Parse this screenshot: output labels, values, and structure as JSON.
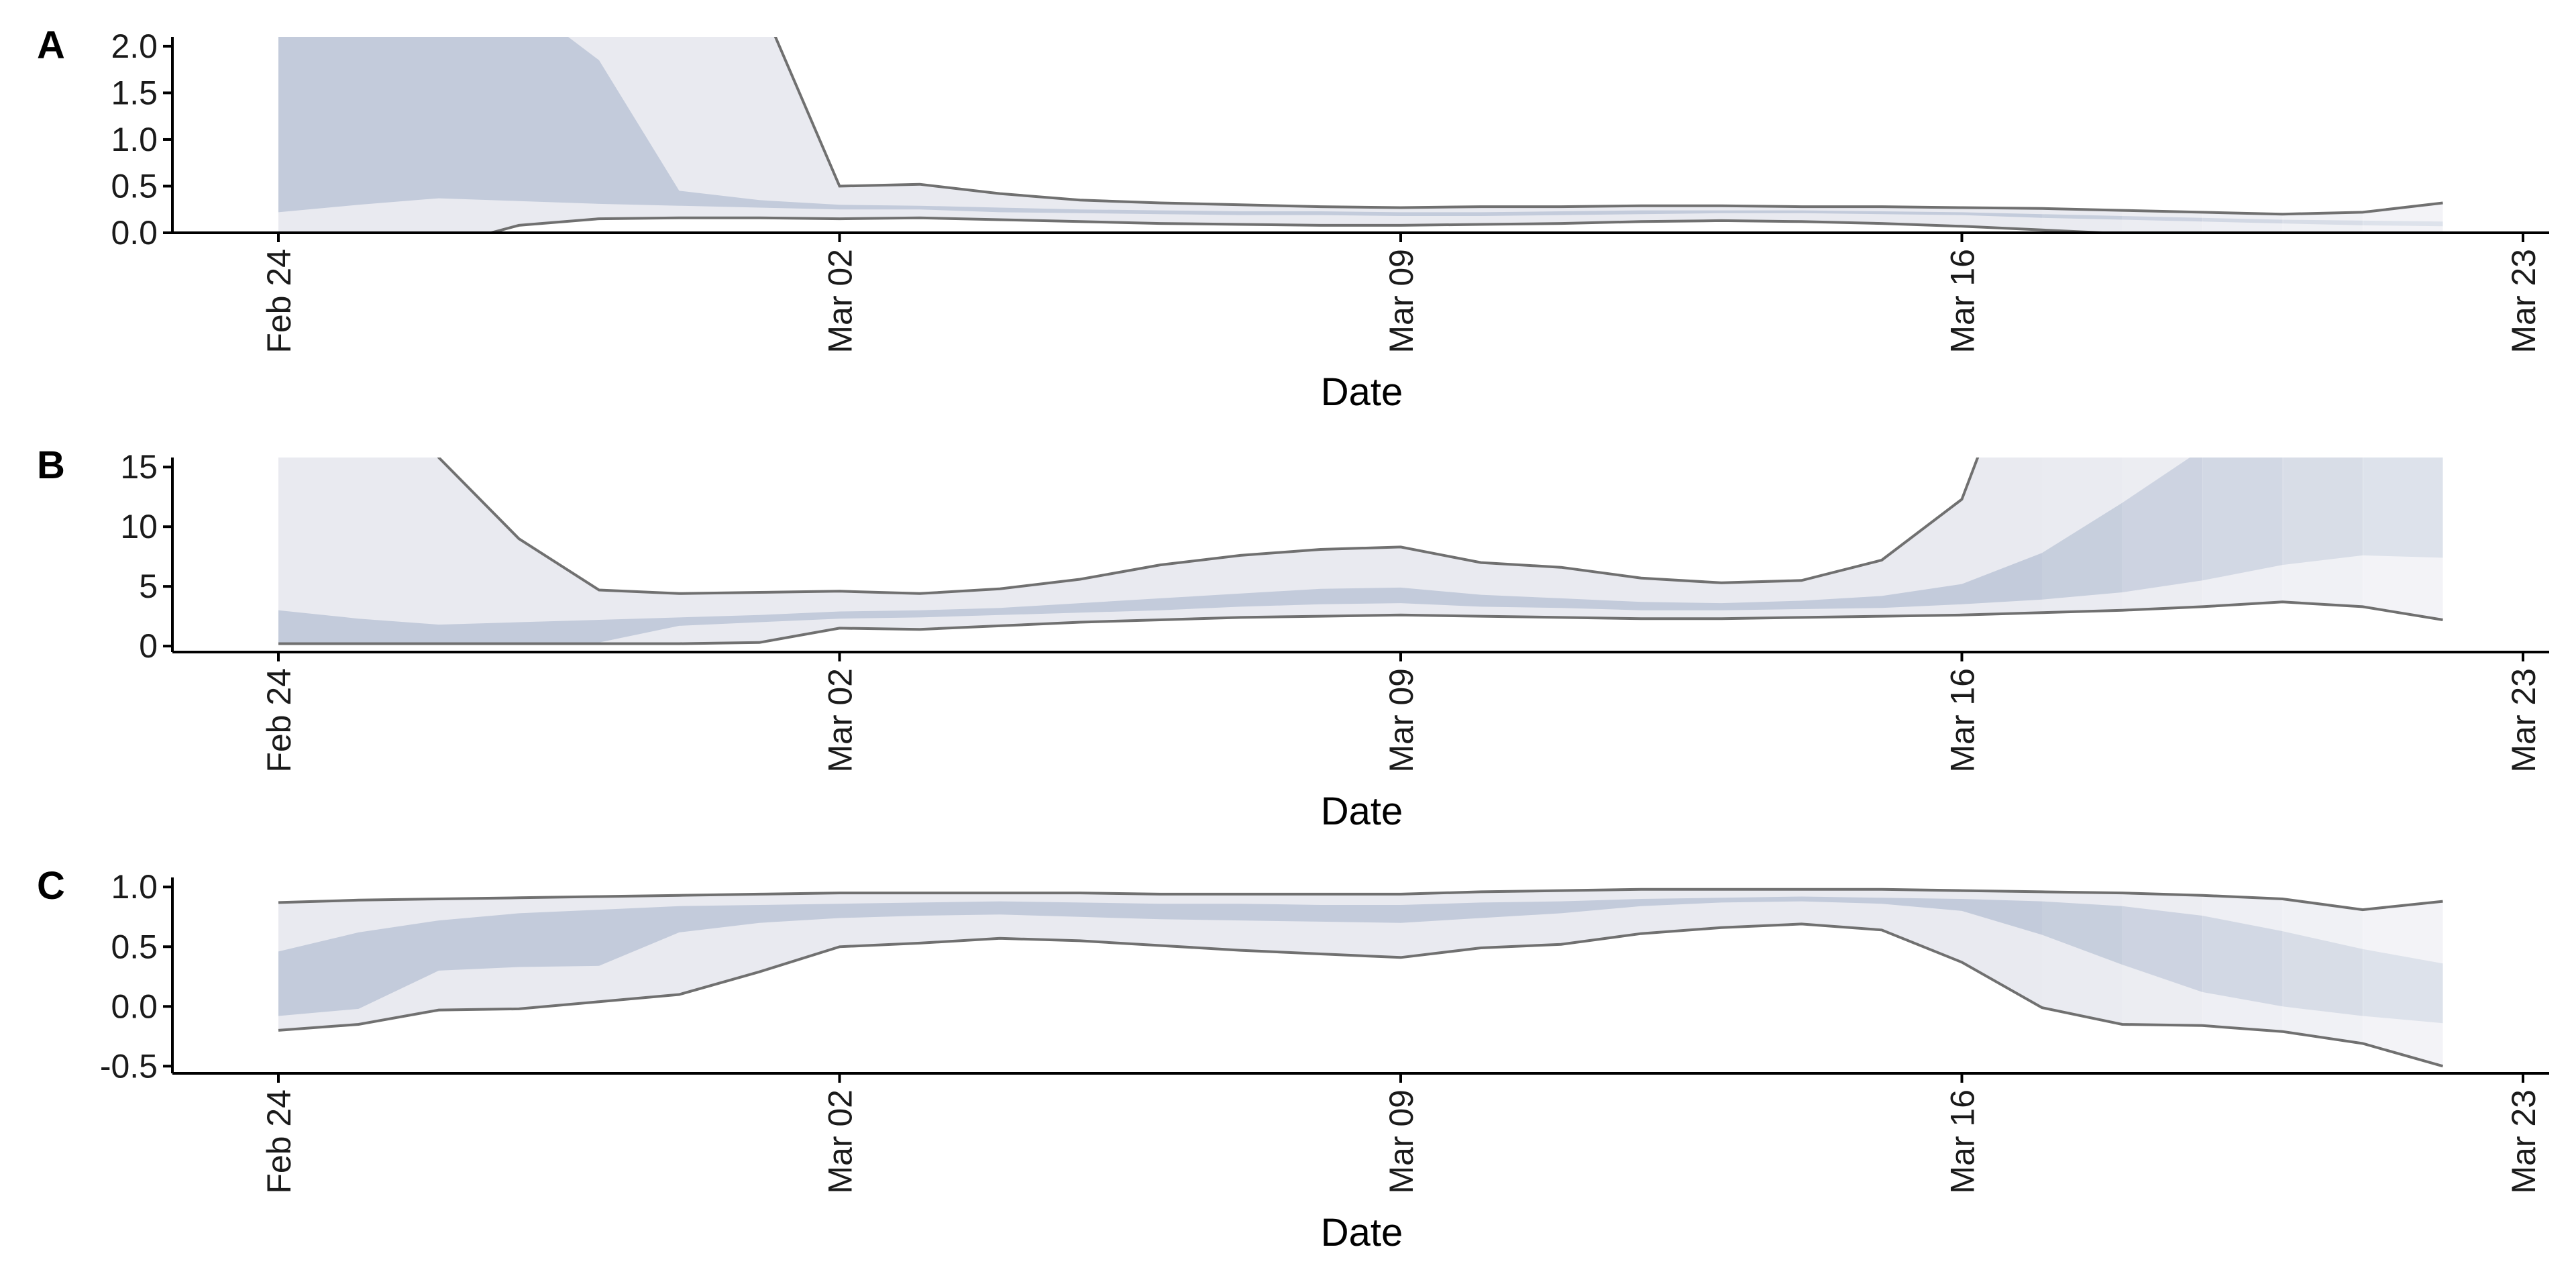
{
  "colors": {
    "outer_band": "#e9eaf0",
    "inner_band": "#c3cbdb",
    "bound_line": "#707070",
    "fade_fill": "#f6f6f8",
    "axis": "#000000"
  },
  "chart_data": [
    {
      "panel": "A",
      "type": "area",
      "xlabel": "Date",
      "ylabel": "",
      "x_tick_labels": [
        "Feb 24",
        "Mar 02",
        "Mar 09",
        "Mar 16",
        "Mar 23"
      ],
      "x_range": [
        "2020-02-24",
        "2020-03-23"
      ],
      "ylim": [
        0,
        2.1
      ],
      "y_ticks": [
        0.0,
        0.5,
        1.0,
        1.5,
        2.0
      ],
      "y_tick_labels": [
        "0.0",
        "0.5",
        "1.0",
        "1.5",
        "2.0"
      ],
      "x": [
        "2020-02-24",
        "2020-02-25",
        "2020-02-26",
        "2020-02-27",
        "2020-02-28",
        "2020-02-29",
        "2020-03-01",
        "2020-03-02",
        "2020-03-03",
        "2020-03-04",
        "2020-03-05",
        "2020-03-06",
        "2020-03-07",
        "2020-03-08",
        "2020-03-09",
        "2020-03-10",
        "2020-03-11",
        "2020-03-12",
        "2020-03-13",
        "2020-03-14",
        "2020-03-15",
        "2020-03-16",
        "2020-03-17",
        "2020-03-18",
        "2020-03-19",
        "2020-03-20",
        "2020-03-21",
        "2020-03-22"
      ],
      "series": [
        {
          "values_lower": [
            -0.5,
            -0.3,
            -0.15,
            0.08,
            0.15,
            0.16,
            0.16,
            0.15,
            0.16,
            0.14,
            0.12,
            0.1,
            0.09,
            0.08,
            0.08,
            0.09,
            0.1,
            0.12,
            0.13,
            0.12,
            0.1,
            0.07,
            0.03,
            -0.01,
            -0.04,
            -0.06,
            -0.07,
            -0.08
          ],
          "values_upper": [
            5.0,
            5.0,
            5.0,
            5.0,
            5.0,
            3.0,
            2.5,
            0.5,
            0.52,
            0.42,
            0.35,
            0.32,
            0.3,
            0.28,
            0.27,
            0.28,
            0.28,
            0.29,
            0.29,
            0.28,
            0.28,
            0.27,
            0.26,
            0.24,
            0.22,
            0.2,
            0.22,
            0.32
          ],
          "band": "outer"
        },
        {
          "values_lower": [
            0.22,
            0.3,
            0.37,
            0.34,
            0.31,
            0.29,
            0.27,
            0.25,
            0.25,
            0.22,
            0.21,
            0.2,
            0.19,
            0.19,
            0.18,
            0.18,
            0.19,
            0.2,
            0.21,
            0.21,
            0.2,
            0.19,
            0.16,
            0.14,
            0.12,
            0.1,
            0.08,
            0.07
          ],
          "values_upper": [
            2.5,
            2.5,
            2.5,
            2.5,
            1.85,
            0.45,
            0.35,
            0.3,
            0.29,
            0.27,
            0.25,
            0.24,
            0.23,
            0.23,
            0.22,
            0.22,
            0.23,
            0.24,
            0.24,
            0.24,
            0.23,
            0.22,
            0.2,
            0.18,
            0.16,
            0.14,
            0.13,
            0.12
          ],
          "band": "inner"
        }
      ]
    },
    {
      "panel": "B",
      "type": "area",
      "xlabel": "Date",
      "ylabel": "",
      "x_tick_labels": [
        "Feb 24",
        "Mar 02",
        "Mar 09",
        "Mar 16",
        "Mar 23"
      ],
      "x_range": [
        "2020-02-24",
        "2020-03-23"
      ],
      "ylim": [
        -0.5,
        15.8
      ],
      "y_ticks": [
        0,
        5,
        10,
        15
      ],
      "y_tick_labels": [
        "0",
        "5",
        "10",
        "15"
      ],
      "x": [
        "2020-02-24",
        "2020-02-25",
        "2020-02-26",
        "2020-02-27",
        "2020-02-28",
        "2020-02-29",
        "2020-03-01",
        "2020-03-02",
        "2020-03-03",
        "2020-03-04",
        "2020-03-05",
        "2020-03-06",
        "2020-03-07",
        "2020-03-08",
        "2020-03-09",
        "2020-03-10",
        "2020-03-11",
        "2020-03-12",
        "2020-03-13",
        "2020-03-14",
        "2020-03-15",
        "2020-03-16",
        "2020-03-17",
        "2020-03-18",
        "2020-03-19",
        "2020-03-20",
        "2020-03-21",
        "2020-03-22"
      ],
      "series": [
        {
          "values_lower": [
            0.2,
            0.2,
            0.2,
            0.2,
            0.2,
            0.2,
            0.3,
            1.5,
            1.4,
            1.7,
            2.0,
            2.2,
            2.4,
            2.5,
            2.6,
            2.5,
            2.4,
            2.3,
            2.3,
            2.4,
            2.5,
            2.6,
            2.8,
            3.0,
            3.3,
            3.7,
            3.3,
            2.2
          ],
          "values_upper": [
            30,
            30,
            15.8,
            9.0,
            4.7,
            4.4,
            4.5,
            4.6,
            4.4,
            4.8,
            5.6,
            6.8,
            7.6,
            8.1,
            8.3,
            7.0,
            6.6,
            5.7,
            5.3,
            5.5,
            7.2,
            12.3,
            30,
            30,
            30,
            30,
            30,
            30
          ],
          "band": "outer"
        },
        {
          "values_lower": [
            0.3,
            0.3,
            0.3,
            0.3,
            0.3,
            1.7,
            2.0,
            2.3,
            2.4,
            2.6,
            2.8,
            3.0,
            3.3,
            3.5,
            3.6,
            3.3,
            3.2,
            3.0,
            3.0,
            3.1,
            3.2,
            3.5,
            3.9,
            4.5,
            5.5,
            6.8,
            7.6,
            7.4
          ],
          "values_upper": [
            3.0,
            2.3,
            1.8,
            2.0,
            2.2,
            2.4,
            2.6,
            2.9,
            3.0,
            3.2,
            3.6,
            4.0,
            4.4,
            4.8,
            4.9,
            4.3,
            4.0,
            3.7,
            3.6,
            3.8,
            4.2,
            5.2,
            7.8,
            12.0,
            16.5,
            17.0,
            17.0,
            17.0
          ],
          "band": "inner"
        }
      ]
    },
    {
      "panel": "C",
      "type": "area",
      "xlabel": "Date",
      "ylabel": "",
      "x_tick_labels": [
        "Feb 24",
        "Mar 02",
        "Mar 09",
        "Mar 16",
        "Mar 23"
      ],
      "x_range": [
        "2020-02-24",
        "2020-03-23"
      ],
      "ylim": [
        -0.56,
        1.08
      ],
      "y_ticks": [
        -0.5,
        0.0,
        0.5,
        1.0
      ],
      "y_tick_labels": [
        "-0.5",
        "0.0",
        "0.5",
        "1.0"
      ],
      "x": [
        "2020-02-24",
        "2020-02-25",
        "2020-02-26",
        "2020-02-27",
        "2020-02-28",
        "2020-02-29",
        "2020-03-01",
        "2020-03-02",
        "2020-03-03",
        "2020-03-04",
        "2020-03-05",
        "2020-03-06",
        "2020-03-07",
        "2020-03-08",
        "2020-03-09",
        "2020-03-10",
        "2020-03-11",
        "2020-03-12",
        "2020-03-13",
        "2020-03-14",
        "2020-03-15",
        "2020-03-16",
        "2020-03-17",
        "2020-03-18",
        "2020-03-19",
        "2020-03-20",
        "2020-03-21",
        "2020-03-22"
      ],
      "series": [
        {
          "values_lower": [
            -0.2,
            -0.15,
            -0.03,
            -0.02,
            0.04,
            0.1,
            0.29,
            0.5,
            0.53,
            0.57,
            0.55,
            0.51,
            0.47,
            0.44,
            0.41,
            0.49,
            0.52,
            0.61,
            0.66,
            0.69,
            0.64,
            0.37,
            -0.01,
            -0.15,
            -0.16,
            -0.21,
            -0.31,
            -0.5
          ],
          "values_upper": [
            0.87,
            0.89,
            0.9,
            0.91,
            0.92,
            0.93,
            0.94,
            0.95,
            0.95,
            0.95,
            0.95,
            0.94,
            0.94,
            0.94,
            0.94,
            0.96,
            0.97,
            0.98,
            0.98,
            0.98,
            0.98,
            0.97,
            0.96,
            0.95,
            0.93,
            0.9,
            0.81,
            0.88
          ],
          "band": "outer"
        },
        {
          "values_lower": [
            -0.08,
            -0.02,
            0.3,
            0.33,
            0.34,
            0.62,
            0.7,
            0.74,
            0.76,
            0.77,
            0.75,
            0.73,
            0.72,
            0.71,
            0.7,
            0.74,
            0.78,
            0.84,
            0.87,
            0.88,
            0.86,
            0.8,
            0.6,
            0.35,
            0.12,
            0.0,
            -0.08,
            -0.14
          ],
          "values_upper": [
            0.46,
            0.62,
            0.72,
            0.78,
            0.81,
            0.84,
            0.85,
            0.86,
            0.87,
            0.88,
            0.87,
            0.86,
            0.86,
            0.85,
            0.85,
            0.87,
            0.88,
            0.9,
            0.91,
            0.92,
            0.91,
            0.9,
            0.88,
            0.84,
            0.76,
            0.63,
            0.48,
            0.36
          ],
          "band": "inner"
        }
      ]
    }
  ]
}
